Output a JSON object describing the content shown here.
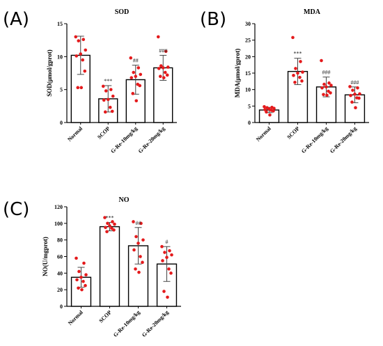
{
  "figure": {
    "colors": {
      "bar_fill": "#ffffff",
      "bar_stroke": "#000000",
      "point": "#e41a1c",
      "error": "#444444"
    }
  },
  "chart_data": [
    {
      "panel": "(A)",
      "type": "bar",
      "title": "SOD",
      "ylabel": "SOD(μmol/gprot)",
      "ylim": [
        0,
        15
      ],
      "yticks": [
        "0",
        "5",
        "10",
        "15"
      ],
      "categories": [
        "Normal",
        "SCOP",
        "G-Re-10mg/kg",
        "G-Re-20mg/kg"
      ],
      "values": [
        10.2,
        3.6,
        6.5,
        8.3
      ],
      "sd": [
        2.9,
        2.0,
        2.2,
        1.9
      ],
      "significance": [
        "",
        "***",
        "##",
        "###"
      ],
      "points": [
        [
          13.0,
          12.6,
          12.4,
          11.0,
          10.4,
          10.1,
          9.5,
          7.8,
          5.3,
          5.3
        ],
        [
          5.5,
          5.0,
          4.8,
          4.0,
          3.5,
          3.4,
          2.3,
          1.7,
          1.6
        ],
        [
          9.8,
          8.3,
          7.6,
          7.3,
          7.0,
          6.8,
          5.8,
          5.6,
          4.4,
          3.3
        ],
        [
          13.0,
          10.8,
          8.6,
          8.4,
          8.3,
          8.2,
          7.6,
          7.2,
          7.0,
          6.8
        ]
      ]
    },
    {
      "panel": "(B)",
      "type": "bar",
      "title": "MDA",
      "ylabel": "MDA(μmol/gprot)",
      "ylim": [
        0,
        30
      ],
      "yticks": [
        "0",
        "5",
        "10",
        "15",
        "20",
        "25",
        "30"
      ],
      "categories": [
        "Normal",
        "SCOP",
        "G-Re-10mg/kg",
        "G-Re-20mg/kg"
      ],
      "values": [
        3.8,
        15.5,
        10.8,
        8.4
      ],
      "sd": [
        0.8,
        4.0,
        3.0,
        2.4
      ],
      "significance": [
        "",
        "***",
        "###",
        "###"
      ],
      "points": [
        [
          4.8,
          4.6,
          4.5,
          4.3,
          4.1,
          3.9,
          3.7,
          3.5,
          3.2,
          2.3
        ],
        [
          25.8,
          18.5,
          16.4,
          15.3,
          15.0,
          14.3,
          13.7,
          12.6,
          12.2
        ],
        [
          18.8,
          12.0,
          11.6,
          11.3,
          10.8,
          10.5,
          9.5,
          9.0,
          8.5,
          8.3
        ],
        [
          10.9,
          10.5,
          9.8,
          8.7,
          8.6,
          8.2,
          7.5,
          7.4,
          6.2,
          4.5
        ]
      ]
    },
    {
      "panel": "(C)",
      "type": "bar",
      "title": "NO",
      "ylabel": "NO(U/mgprot)",
      "ylim": [
        0,
        120
      ],
      "yticks": [
        "0",
        "20",
        "40",
        "60",
        "80",
        "100",
        "120"
      ],
      "categories": [
        "Normal",
        "SCOP",
        "G-Re-10mg/kg",
        "G-Re-20mg/kg"
      ],
      "values": [
        35,
        96,
        73,
        51
      ],
      "sd": [
        12,
        5,
        22,
        21
      ],
      "significance": [
        "",
        "***",
        "##",
        "#"
      ],
      "points": [
        [
          58,
          52,
          42,
          38,
          35,
          32,
          30,
          25,
          22,
          20
        ],
        [
          107,
          102,
          100,
          99,
          97,
          95,
          94,
          92,
          90
        ],
        [
          102,
          100,
          84,
          80,
          76,
          68,
          60,
          53,
          45,
          41
        ],
        [
          72,
          67,
          65,
          62,
          59,
          55,
          45,
          40,
          18,
          11
        ]
      ]
    }
  ]
}
